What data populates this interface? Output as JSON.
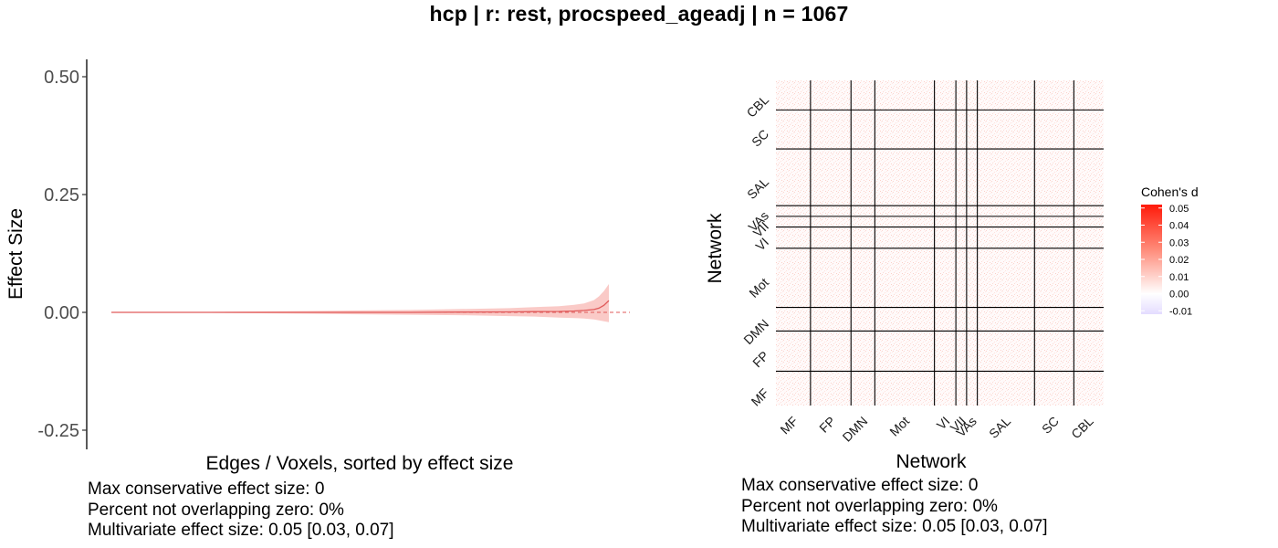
{
  "title": "hcp | r: rest, procspeed_ageadj | n = 1067",
  "chart_data": [
    {
      "type": "area",
      "xlabel": "Edges / Voxels, sorted by effect size",
      "ylabel": "Effect Size",
      "ylim": [
        -0.28,
        0.54
      ],
      "y_ticks": [
        -0.25,
        0,
        0.25,
        0.5
      ],
      "y_tick_labels": [
        "-0.25",
        "0.00",
        "0.25",
        "0.50"
      ],
      "x_ticks_shown": false,
      "reference_line": {
        "y": 0,
        "style": "dashed",
        "color": "#e05a5a"
      },
      "series": [
        {
          "x": [
            0,
            0.1,
            0.2,
            0.3,
            0.4,
            0.5,
            0.6,
            0.7,
            0.8,
            0.85,
            0.9,
            0.93,
            0.95,
            0.97,
            0.98,
            0.99,
            1.0
          ],
          "estimate": [
            0,
            0,
            0,
            0,
            0,
            0,
            0,
            0.0005,
            0.001,
            0.0015,
            0.002,
            0.003,
            0.004,
            0.006,
            0.009,
            0.015,
            0.025
          ],
          "lower": [
            0,
            -0.0005,
            -0.001,
            -0.002,
            -0.003,
            -0.004,
            -0.005,
            -0.006,
            -0.008,
            -0.009,
            -0.011,
            -0.012,
            -0.013,
            -0.015,
            -0.017,
            -0.019,
            -0.021
          ],
          "upper": [
            0,
            0.0005,
            0.001,
            0.002,
            0.003,
            0.004,
            0.005,
            0.007,
            0.009,
            0.011,
            0.013,
            0.016,
            0.019,
            0.026,
            0.034,
            0.045,
            0.06
          ]
        }
      ],
      "colors": {
        "line": "#e05a5a",
        "band": "#f8b8b4"
      },
      "stats": [
        "Max conservative effect size: 0",
        "Percent not overlapping zero: 0%",
        "Multivariate effect size: 0.05 [0.03, 0.07]"
      ]
    },
    {
      "type": "heatmap",
      "xlabel": "Network",
      "ylabel": "Network",
      "x_categories": [
        "MF",
        "FP",
        "DMN",
        "Mot",
        "VI",
        "VII",
        "VAs",
        "SAL",
        "SC",
        "CBL"
      ],
      "y_categories": [
        "MF",
        "FP",
        "DMN",
        "Mot",
        "VI",
        "VII",
        "VAs",
        "SAL",
        "SC",
        "CBL"
      ],
      "network_sizes": [
        29,
        34,
        20,
        50,
        18,
        9,
        9,
        48,
        33,
        25
      ],
      "legend": {
        "title": "Cohen's d",
        "placement": "right",
        "range": [
          -0.012,
          0.052
        ],
        "ticks": [
          0.05,
          0.04,
          0.03,
          0.02,
          0.01,
          0.0,
          -0.01
        ],
        "tick_labels": [
          "0.05",
          "0.04",
          "0.03",
          "0.02",
          "0.01",
          "0.00",
          "-0.01"
        ],
        "colors": {
          "high": "#ff1a0a",
          "mid": "#ffffff",
          "low": "#e4dcff"
        }
      },
      "stats": [
        "Max conservative effect size: 0",
        "Percent not overlapping zero: 0%",
        "Multivariate effect size: 0.05 [0.03, 0.07]"
      ]
    }
  ]
}
